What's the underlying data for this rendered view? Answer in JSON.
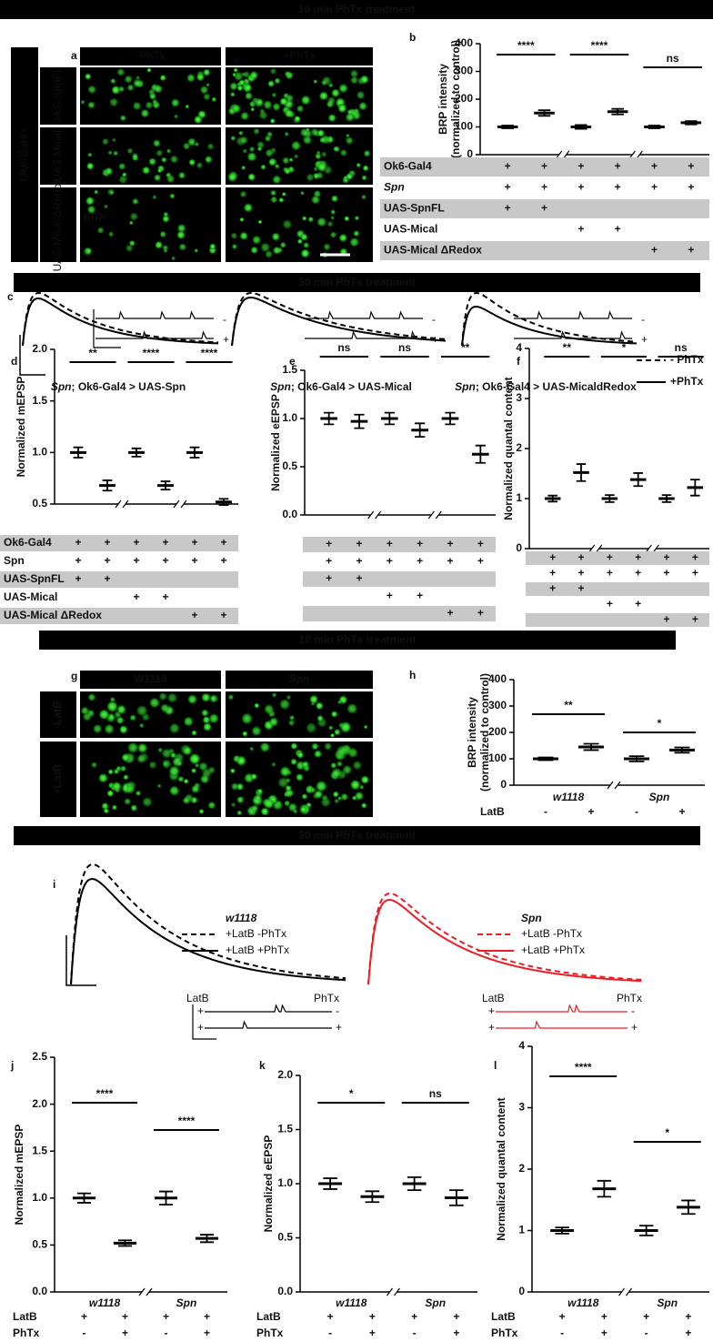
{
  "banners": [
    "10 min PhTx treatment",
    "30 min PhTx treatment",
    "10 min PhTx treatment",
    "30 min PhTx treatment"
  ],
  "panel_a": {
    "label": "a",
    "columns": [
      "-PhTx",
      "+PhTx"
    ],
    "driver": "Ok6-Gal4>",
    "rows": [
      "UAS-SpnFL",
      "UAS-Mical",
      "UAS-Mical ΔRedox"
    ],
    "stain": "BRP"
  },
  "panel_c": {
    "label": "c",
    "captions": [
      {
        "genotype": "Spn",
        "construct": "; Ok6-Gal4 > UAS-Spn"
      },
      {
        "genotype": "Spn",
        "construct": "; Ok6-Gal4 > UAS-Mical"
      },
      {
        "genotype": "Spn",
        "construct": "; Ok6-Gal4 > UAS-MicaldRedox"
      }
    ],
    "inset_signs": [
      "-",
      "+"
    ],
    "legend": [
      "- PhTx",
      "+PhTx"
    ]
  },
  "panel_g": {
    "label": "g",
    "columns": [
      "W1118",
      "Spn"
    ],
    "rows": [
      "-LatB",
      "+LatB"
    ]
  },
  "panel_i": {
    "label": "i",
    "groups": [
      {
        "name": "w1118",
        "entries": [
          "+LatB -PhTx",
          "+LatB +PhTx"
        ]
      },
      {
        "name": "Spn",
        "entries": [
          "+LatB -PhTx",
          "+LatB +PhTx"
        ]
      }
    ],
    "markers": [
      "LatB",
      "PhTx"
    ],
    "inset_signs": [
      "+",
      "-",
      "+",
      "+"
    ]
  },
  "chart_data": [
    {
      "type": "dot",
      "label": "b",
      "ylabel": [
        "BRP intensity",
        "(normalized to control)"
      ],
      "ylim": [
        0,
        400
      ],
      "yticks": [
        0,
        100,
        200,
        300,
        400
      ],
      "values": [
        100,
        150,
        100,
        155,
        100,
        115
      ],
      "errors": [
        5,
        10,
        7,
        10,
        5,
        6
      ],
      "significance": [
        "****",
        "****",
        "ns"
      ],
      "genotypes": [
        {
          "label": "Ok6-Gal4",
          "cells": [
            "+",
            "+",
            "+",
            "+",
            "+",
            "+"
          ]
        },
        {
          "label": "Spn",
          "cells": [
            "+",
            "+",
            "+",
            "+",
            "+",
            "+"
          ]
        },
        {
          "label": "UAS-SpnFL",
          "cells": [
            "+",
            "+",
            null,
            null,
            null,
            null
          ]
        },
        {
          "label": "UAS-Mical",
          "cells": [
            null,
            null,
            "+",
            "+",
            null,
            null
          ]
        },
        {
          "label": "UAS-Mical ΔRedox",
          "cells": [
            null,
            null,
            null,
            null,
            "+",
            "+"
          ]
        }
      ]
    },
    {
      "type": "dot",
      "label": "d",
      "ylabel": [
        "Normalized mEPSP"
      ],
      "ylim": [
        0.5,
        2.0
      ],
      "yticks": [
        0.5,
        {
          "value": 1,
          "label": "1.0"
        },
        1.5,
        {
          "value": 2,
          "label": "2.0"
        }
      ],
      "values": [
        1.0,
        0.68,
        1.0,
        0.68,
        1.0,
        0.52
      ],
      "errors": [
        0.05,
        0.05,
        0.04,
        0.04,
        0.05,
        0.03
      ],
      "significance": [
        "**",
        "****",
        "****"
      ],
      "genotypes": [
        {
          "label": "Ok6-Gal4",
          "cells": [
            "+",
            "+",
            "+",
            "+",
            "+",
            "+"
          ]
        },
        {
          "label": "Spn",
          "cells": [
            "+",
            "+",
            "+",
            "+",
            "+",
            "+"
          ]
        },
        {
          "label": "UAS-SpnFL",
          "cells": [
            "+",
            "+",
            null,
            null,
            null,
            null
          ]
        },
        {
          "label": "UAS-Mical",
          "cells": [
            null,
            null,
            "+",
            "+",
            null,
            null
          ]
        },
        {
          "label": "UAS-Mical ΔRedox",
          "cells": [
            null,
            null,
            null,
            null,
            "+",
            "+"
          ]
        }
      ]
    },
    {
      "type": "dot",
      "label": "e",
      "ylabel": [
        "Normalized eEPSP"
      ],
      "ylim": [
        0,
        1.5
      ],
      "yticks": [
        {
          "value": 0,
          "label": "0.0"
        },
        0.5,
        {
          "value": 1,
          "label": "1.0"
        },
        1.5
      ],
      "values": [
        1.0,
        0.97,
        1.0,
        0.88,
        1.0,
        0.63
      ],
      "errors": [
        0.06,
        0.07,
        0.06,
        0.07,
        0.06,
        0.09
      ],
      "significance": [
        "ns",
        "ns",
        "**"
      ],
      "genotypes": [
        {
          "label": null,
          "cells": [
            "+",
            "+",
            "+",
            "+",
            "+",
            "+"
          ]
        },
        {
          "label": null,
          "cells": [
            "+",
            "+",
            "+",
            "+",
            "+",
            "+"
          ]
        },
        {
          "label": null,
          "cells": [
            "+",
            "+",
            null,
            null,
            null,
            null
          ]
        },
        {
          "label": null,
          "cells": [
            null,
            null,
            "+",
            "+",
            null,
            null
          ]
        },
        {
          "label": null,
          "cells": [
            null,
            null,
            null,
            null,
            "+",
            "+"
          ]
        }
      ]
    },
    {
      "type": "dot",
      "label": "f",
      "ylabel": [
        "Normalized quantal content"
      ],
      "ylim": [
        0,
        4
      ],
      "yticks": [
        0,
        1,
        2,
        3,
        4
      ],
      "values": [
        1.0,
        1.52,
        1.0,
        1.38,
        1.0,
        1.22
      ],
      "errors": [
        0.06,
        0.17,
        0.07,
        0.13,
        0.07,
        0.16
      ],
      "significance": [
        "**",
        "*",
        "ns"
      ],
      "genotypes": [
        {
          "label": null,
          "cells": [
            "+",
            "+",
            "+",
            "+",
            "+",
            "+"
          ]
        },
        {
          "label": null,
          "cells": [
            "+",
            "+",
            "+",
            "+",
            "+",
            "+"
          ]
        },
        {
          "label": null,
          "cells": [
            "+",
            "+",
            null,
            null,
            null,
            null
          ]
        },
        {
          "label": null,
          "cells": [
            null,
            null,
            "+",
            "+",
            null,
            null
          ]
        },
        {
          "label": null,
          "cells": [
            null,
            null,
            null,
            null,
            "+",
            "+"
          ]
        }
      ]
    },
    {
      "type": "dot",
      "label": "h",
      "ylabel": [
        "BRP intensity",
        "(normalized to control)"
      ],
      "ylim": [
        0,
        400
      ],
      "yticks": [
        0,
        100,
        200,
        300,
        400
      ],
      "values": [
        100,
        145,
        100,
        133
      ],
      "errors": [
        5,
        12,
        10,
        10
      ],
      "significance": [
        "**",
        "*"
      ],
      "groups": [
        {
          "name": "w1118",
          "color": "#333333"
        },
        {
          "name": "Spn",
          "color": "#ee1c25"
        }
      ],
      "conditions": [
        {
          "label": "LatB",
          "cells": [
            "-",
            "+",
            "-",
            "+"
          ]
        }
      ]
    },
    {
      "type": "dot",
      "label": "j",
      "ylabel": [
        "Normalized mEPSP"
      ],
      "ylim": [
        0,
        2.5
      ],
      "yticks": [
        {
          "value": 0,
          "label": "0.0"
        },
        0.5,
        {
          "value": 1,
          "label": "1.0"
        },
        1.5,
        {
          "value": 2,
          "label": "2.0"
        },
        2.5
      ],
      "values": [
        1.0,
        0.52,
        1.0,
        0.57
      ],
      "errors": [
        0.05,
        0.03,
        0.07,
        0.04
      ],
      "significance": [
        "****",
        "****"
      ],
      "groups": [
        {
          "name": "w1118",
          "color": "#333333"
        },
        {
          "name": "Spn",
          "color": "#ee1c25"
        }
      ],
      "conditions": [
        {
          "label": "LatB",
          "cells": [
            "+",
            "+",
            "+",
            "+"
          ]
        },
        {
          "label": "PhTx",
          "cells": [
            "-",
            "+",
            "-",
            "+"
          ]
        }
      ]
    },
    {
      "type": "dot",
      "label": "k",
      "ylabel": [
        "Normalized eEPSP"
      ],
      "ylim": [
        0,
        2.0
      ],
      "yticks": [
        {
          "value": 0,
          "label": "0.0"
        },
        0.5,
        {
          "value": 1,
          "label": "1.0"
        },
        1.5,
        {
          "value": 2,
          "label": "2.0"
        }
      ],
      "values": [
        1.0,
        0.88,
        1.0,
        0.87
      ],
      "errors": [
        0.05,
        0.05,
        0.06,
        0.07
      ],
      "significance": [
        "*",
        "ns"
      ],
      "groups": [
        {
          "name": "w1118",
          "color": "#333333"
        },
        {
          "name": "Spn",
          "color": "#ee1c25"
        }
      ],
      "conditions": [
        {
          "label": "LatB",
          "cells": [
            "+",
            "+",
            "+",
            "+"
          ]
        },
        {
          "label": "PhTx",
          "cells": [
            "-",
            "+",
            "-",
            "+"
          ]
        }
      ]
    },
    {
      "type": "dot",
      "label": "l",
      "ylabel": [
        "Normalized quantal content"
      ],
      "ylim": [
        0,
        4
      ],
      "yticks": [
        0,
        1,
        2,
        3,
        4
      ],
      "values": [
        1.0,
        1.68,
        1.0,
        1.38
      ],
      "errors": [
        0.05,
        0.13,
        0.08,
        0.11
      ],
      "significance": [
        "****",
        "*"
      ],
      "groups": [
        {
          "name": "w1118",
          "color": "#333333"
        },
        {
          "name": "Spn",
          "color": "#ee1c25"
        }
      ],
      "conditions": [
        {
          "label": "LatB",
          "cells": [
            "+",
            "+",
            "+",
            "+"
          ]
        },
        {
          "label": "PhTx",
          "cells": [
            "-",
            "+",
            "-",
            "+"
          ]
        }
      ]
    }
  ]
}
